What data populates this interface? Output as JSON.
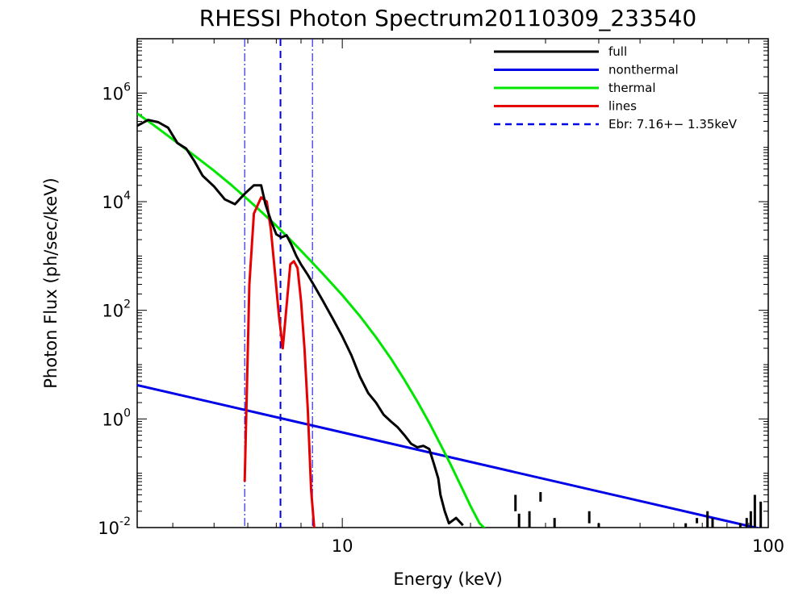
{
  "chart_data": {
    "type": "line",
    "title": "RHESSI Photon Spectrum20110309_233540",
    "xlabel": "Energy (keV)",
    "ylabel": "Photon Flux (ph/sec/keV)",
    "xscale": "log",
    "yscale": "log",
    "xlim": [
      3.3,
      100
    ],
    "ylim": [
      0.01,
      10000000
    ],
    "grid": false,
    "legend_position": "top-right",
    "x_ticks": [
      {
        "value": 10,
        "label": "10"
      },
      {
        "value": 100,
        "label": "100"
      }
    ],
    "y_ticks": [
      {
        "value": 0.01,
        "base": "10",
        "exp": "-2"
      },
      {
        "value": 1,
        "base": "10",
        "exp": "0"
      },
      {
        "value": 100,
        "base": "10",
        "exp": "2"
      },
      {
        "value": 10000,
        "base": "10",
        "exp": "4"
      },
      {
        "value": 1000000,
        "base": "10",
        "exp": "6"
      }
    ],
    "series": [
      {
        "name": "full",
        "color": "#000000",
        "x": [
          3.3,
          3.5,
          3.7,
          3.9,
          4.1,
          4.3,
          4.5,
          4.7,
          5.0,
          5.3,
          5.6,
          5.9,
          6.2,
          6.45,
          6.6,
          6.8,
          7.0,
          7.2,
          7.4,
          7.6,
          7.8,
          8.0,
          8.3,
          8.6,
          9.0,
          9.5,
          10.0,
          10.5,
          11.0,
          11.5,
          12.0,
          12.5,
          13.0,
          13.5,
          14.0,
          14.5,
          15.0,
          15.5,
          16.0,
          16.4,
          16.8,
          17.0,
          17.4,
          17.8,
          18.5,
          19.2
        ],
        "y": [
          250000,
          320000,
          290000,
          230000,
          120000,
          95000,
          55000,
          30000,
          19000,
          11000,
          9000,
          14000,
          20000,
          20000,
          9000,
          4500,
          2500,
          2200,
          2400,
          1600,
          1000,
          700,
          450,
          280,
          150,
          70,
          33,
          15,
          6,
          3,
          2,
          1.2,
          0.9,
          0.7,
          0.5,
          0.35,
          0.3,
          0.32,
          0.28,
          0.15,
          0.08,
          0.04,
          0.02,
          0.012,
          0.015,
          0.011
        ]
      },
      {
        "name": "nonthermal",
        "color": "#0000e6",
        "x": [
          3.3,
          100
        ],
        "y": [
          4.2,
          0.0088
        ]
      },
      {
        "name": "thermal",
        "color": "#00e600",
        "x": [
          3.3,
          3.6,
          4.0,
          4.5,
          5.0,
          5.5,
          6.0,
          6.5,
          7.0,
          7.5,
          8.0,
          8.5,
          9.0,
          10.0,
          11.0,
          12.0,
          13.0,
          14.0,
          15.0,
          16.0,
          17.0,
          18.0,
          19.0,
          20.0,
          21.0,
          22.0
        ],
        "y": [
          420000,
          260000,
          140000,
          70000,
          37000,
          20000,
          11000,
          6200,
          3600,
          2100,
          1250,
          760,
          470,
          190,
          78,
          32,
          13,
          5.2,
          2.1,
          0.85,
          0.34,
          0.14,
          0.058,
          0.025,
          0.012,
          0.0085
        ]
      },
      {
        "name": "lines",
        "color": "#e60000",
        "x": [
          5.9,
          6.05,
          6.2,
          6.45,
          6.65,
          6.8,
          6.95,
          7.1,
          7.25,
          7.4,
          7.55,
          7.7,
          7.85,
          8.0,
          8.15,
          8.3,
          8.45,
          8.6
        ],
        "y": [
          0.07,
          300,
          6000,
          12000,
          10000,
          3000,
          500,
          80,
          20,
          120,
          700,
          800,
          600,
          150,
          20,
          1.5,
          0.05,
          0.009
        ]
      }
    ],
    "markers": [
      {
        "x": 5.9,
        "style": "dash-dot",
        "color": "#0000e6"
      },
      {
        "x": 7.16,
        "style": "dashed",
        "color": "#0000e6"
      },
      {
        "x": 8.51,
        "style": "dash-dot",
        "color": "#0000e6"
      }
    ],
    "legend": [
      {
        "label": "full",
        "color": "#000000",
        "style": "solid"
      },
      {
        "label": "nonthermal",
        "color": "#0000e6",
        "style": "solid"
      },
      {
        "label": "thermal",
        "color": "#00e600",
        "style": "solid"
      },
      {
        "label": "lines",
        "color": "#e60000",
        "style": "solid"
      },
      {
        "label": "Ebr:   7.16+−  1.35keV",
        "color": "#0000e6",
        "style": "dashed"
      }
    ]
  }
}
